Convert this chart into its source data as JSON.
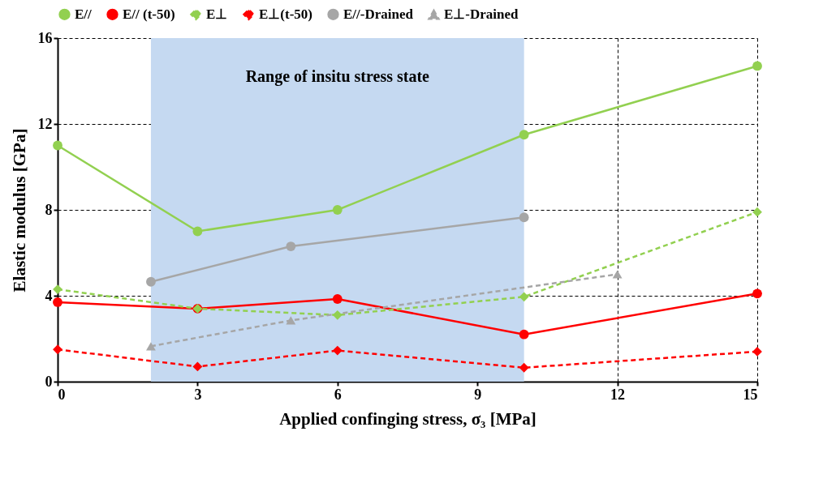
{
  "chart_data": {
    "type": "line",
    "xlabel": "Applied confinging stress, σ₃ [MPa]",
    "ylabel": "Elastic modulus [GPa]",
    "xlim": [
      0,
      15
    ],
    "xticks": [
      0,
      3,
      6,
      9,
      12,
      15
    ],
    "ylim": [
      0,
      16
    ],
    "yticks": [
      0,
      4,
      8,
      12,
      16
    ],
    "grid": true,
    "legend": "top",
    "bands": [
      {
        "axis": "x",
        "from": 2,
        "to": 10,
        "label": "Range of insitu stress state",
        "color": "#c5d9f1"
      }
    ],
    "series": [
      {
        "name": "E//",
        "color": "#92d050",
        "marker": "circle",
        "line_style": "solid",
        "x": [
          0,
          3,
          6,
          10,
          15
        ],
        "values": [
          11.0,
          7.0,
          8.0,
          11.5,
          14.7
        ]
      },
      {
        "name": "E// (t-50)",
        "color": "#ff0000",
        "marker": "circle",
        "line_style": "solid",
        "x": [
          0,
          3,
          6,
          10,
          15
        ],
        "values": [
          3.7,
          3.4,
          3.85,
          2.2,
          4.1
        ]
      },
      {
        "name": "E⊥",
        "color": "#92d050",
        "marker": "diamond",
        "line_style": "dashed",
        "x": [
          0,
          3,
          6,
          10,
          15
        ],
        "values": [
          4.3,
          3.4,
          3.1,
          3.95,
          7.9
        ]
      },
      {
        "name": "E⊥(t-50)",
        "color": "#ff0000",
        "marker": "diamond",
        "line_style": "dashed",
        "x": [
          0,
          3,
          6,
          10,
          15
        ],
        "values": [
          1.5,
          0.7,
          1.45,
          0.65,
          1.4
        ]
      },
      {
        "name": "E//-Drained",
        "color": "#a6a6a6",
        "marker": "circle",
        "line_style": "solid",
        "x": [
          2,
          5,
          10
        ],
        "values": [
          4.65,
          6.3,
          7.65
        ]
      },
      {
        "name": "E⊥-Drained",
        "color": "#a6a6a6",
        "marker": "triangle",
        "line_style": "dashed",
        "x": [
          2,
          5,
          12
        ],
        "values": [
          1.65,
          2.85,
          5.0
        ]
      }
    ]
  }
}
